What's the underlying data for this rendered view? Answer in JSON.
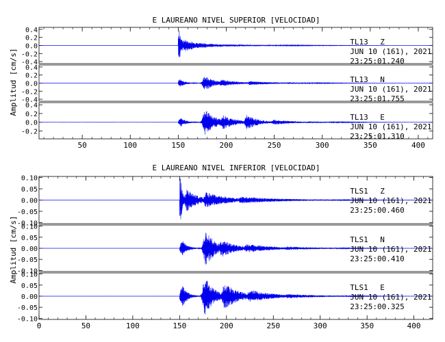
{
  "chart_data": [
    {
      "type": "line",
      "title": "E LAUREANO NIVEL SUPERIOR [VELOCIDAD]",
      "ylabel": "Amplitud [cm/s]",
      "xlim": [
        5,
        415
      ],
      "x_ticks": [
        "50",
        "100",
        "150",
        "200",
        "250",
        "300",
        "350",
        "400"
      ],
      "line_color": "#0000ee",
      "series": [
        {
          "station": "TL13",
          "component": "Z",
          "date": "JUN 10 (161), 2021",
          "time": "23:25:01.240",
          "ylim": [
            -0.45,
            0.45
          ],
          "y_ticks": [
            "0.4",
            "0.2",
            "0.0",
            "-0.2",
            "-0.4"
          ],
          "onset": 150,
          "bursts": [
            [
              151,
              0.38,
              3
            ],
            [
              157,
              0.16,
              14
            ],
            [
              170,
              0.07,
              30
            ],
            [
              200,
              0.03,
              60
            ]
          ]
        },
        {
          "station": "TL13",
          "component": "N",
          "date": "JUN 10 (161), 2021",
          "time": "23:25:01.755",
          "ylim": [
            -0.45,
            0.45
          ],
          "y_ticks": [
            "0.4",
            "0.2",
            "0.0",
            "-0.2",
            "-0.4"
          ],
          "onset": 150,
          "bursts": [
            [
              152,
              0.1,
              6
            ],
            [
              178,
              0.19,
              10
            ],
            [
              195,
              0.09,
              18
            ],
            [
              225,
              0.05,
              28
            ],
            [
              265,
              0.02,
              40
            ]
          ]
        },
        {
          "station": "TL13",
          "component": "E",
          "date": "JUN 10 (161), 2021",
          "time": "23:25:01.310",
          "ylim": [
            -0.38,
            0.45
          ],
          "y_ticks": [
            "0.4",
            "0.2",
            "0.0",
            "-0.2"
          ],
          "onset": 150,
          "bursts": [
            [
              153,
              0.1,
              6
            ],
            [
              178,
              0.3,
              12
            ],
            [
              197,
              0.16,
              14
            ],
            [
              222,
              0.17,
              12
            ],
            [
              250,
              0.06,
              22
            ],
            [
              285,
              0.02,
              40
            ]
          ]
        }
      ]
    },
    {
      "type": "line",
      "title": "E LAUREANO NIVEL INFERIOR [VELOCIDAD]",
      "ylabel": "Amplitud [cm/s]",
      "xlim": [
        0,
        420
      ],
      "x_ticks": [
        "0",
        "50",
        "100",
        "150",
        "200",
        "250",
        "300",
        "350",
        "400"
      ],
      "line_color": "#0000ee",
      "series": [
        {
          "station": "TLS1",
          "component": "Z",
          "date": "JUN 10 (161), 2021",
          "time": "23:25:00.460",
          "ylim": [
            -0.105,
            0.105
          ],
          "y_ticks": [
            "0.10",
            "0.05",
            "0.00",
            "-0.05",
            "-0.10"
          ],
          "onset": 150,
          "bursts": [
            [
              151,
              0.1,
              3
            ],
            [
              158,
              0.05,
              12
            ],
            [
              178,
              0.035,
              25
            ],
            [
              215,
              0.015,
              50
            ]
          ]
        },
        {
          "station": "TLS1",
          "component": "N",
          "date": "JUN 10 (161), 2021",
          "time": "23:25:00.410",
          "ylim": [
            -0.105,
            0.105
          ],
          "y_ticks": [
            "0.10",
            "0.05",
            "0.00",
            "-0.05",
            "-0.10"
          ],
          "onset": 150,
          "bursts": [
            [
              153,
              0.035,
              6
            ],
            [
              178,
              0.085,
              10
            ],
            [
              195,
              0.04,
              16
            ],
            [
              222,
              0.02,
              30
            ],
            [
              265,
              0.008,
              40
            ]
          ]
        },
        {
          "station": "TLS1",
          "component": "E",
          "date": "JUN 10 (161), 2021",
          "time": "23:25:00.325",
          "ylim": [
            -0.105,
            0.105
          ],
          "y_ticks": [
            "0.10",
            "0.05",
            "0.00",
            "-0.05",
            "-0.10"
          ],
          "onset": 150,
          "bursts": [
            [
              153,
              0.05,
              6
            ],
            [
              177,
              0.09,
              10
            ],
            [
              198,
              0.06,
              16
            ],
            [
              225,
              0.03,
              25
            ],
            [
              265,
              0.01,
              40
            ]
          ]
        }
      ]
    }
  ]
}
